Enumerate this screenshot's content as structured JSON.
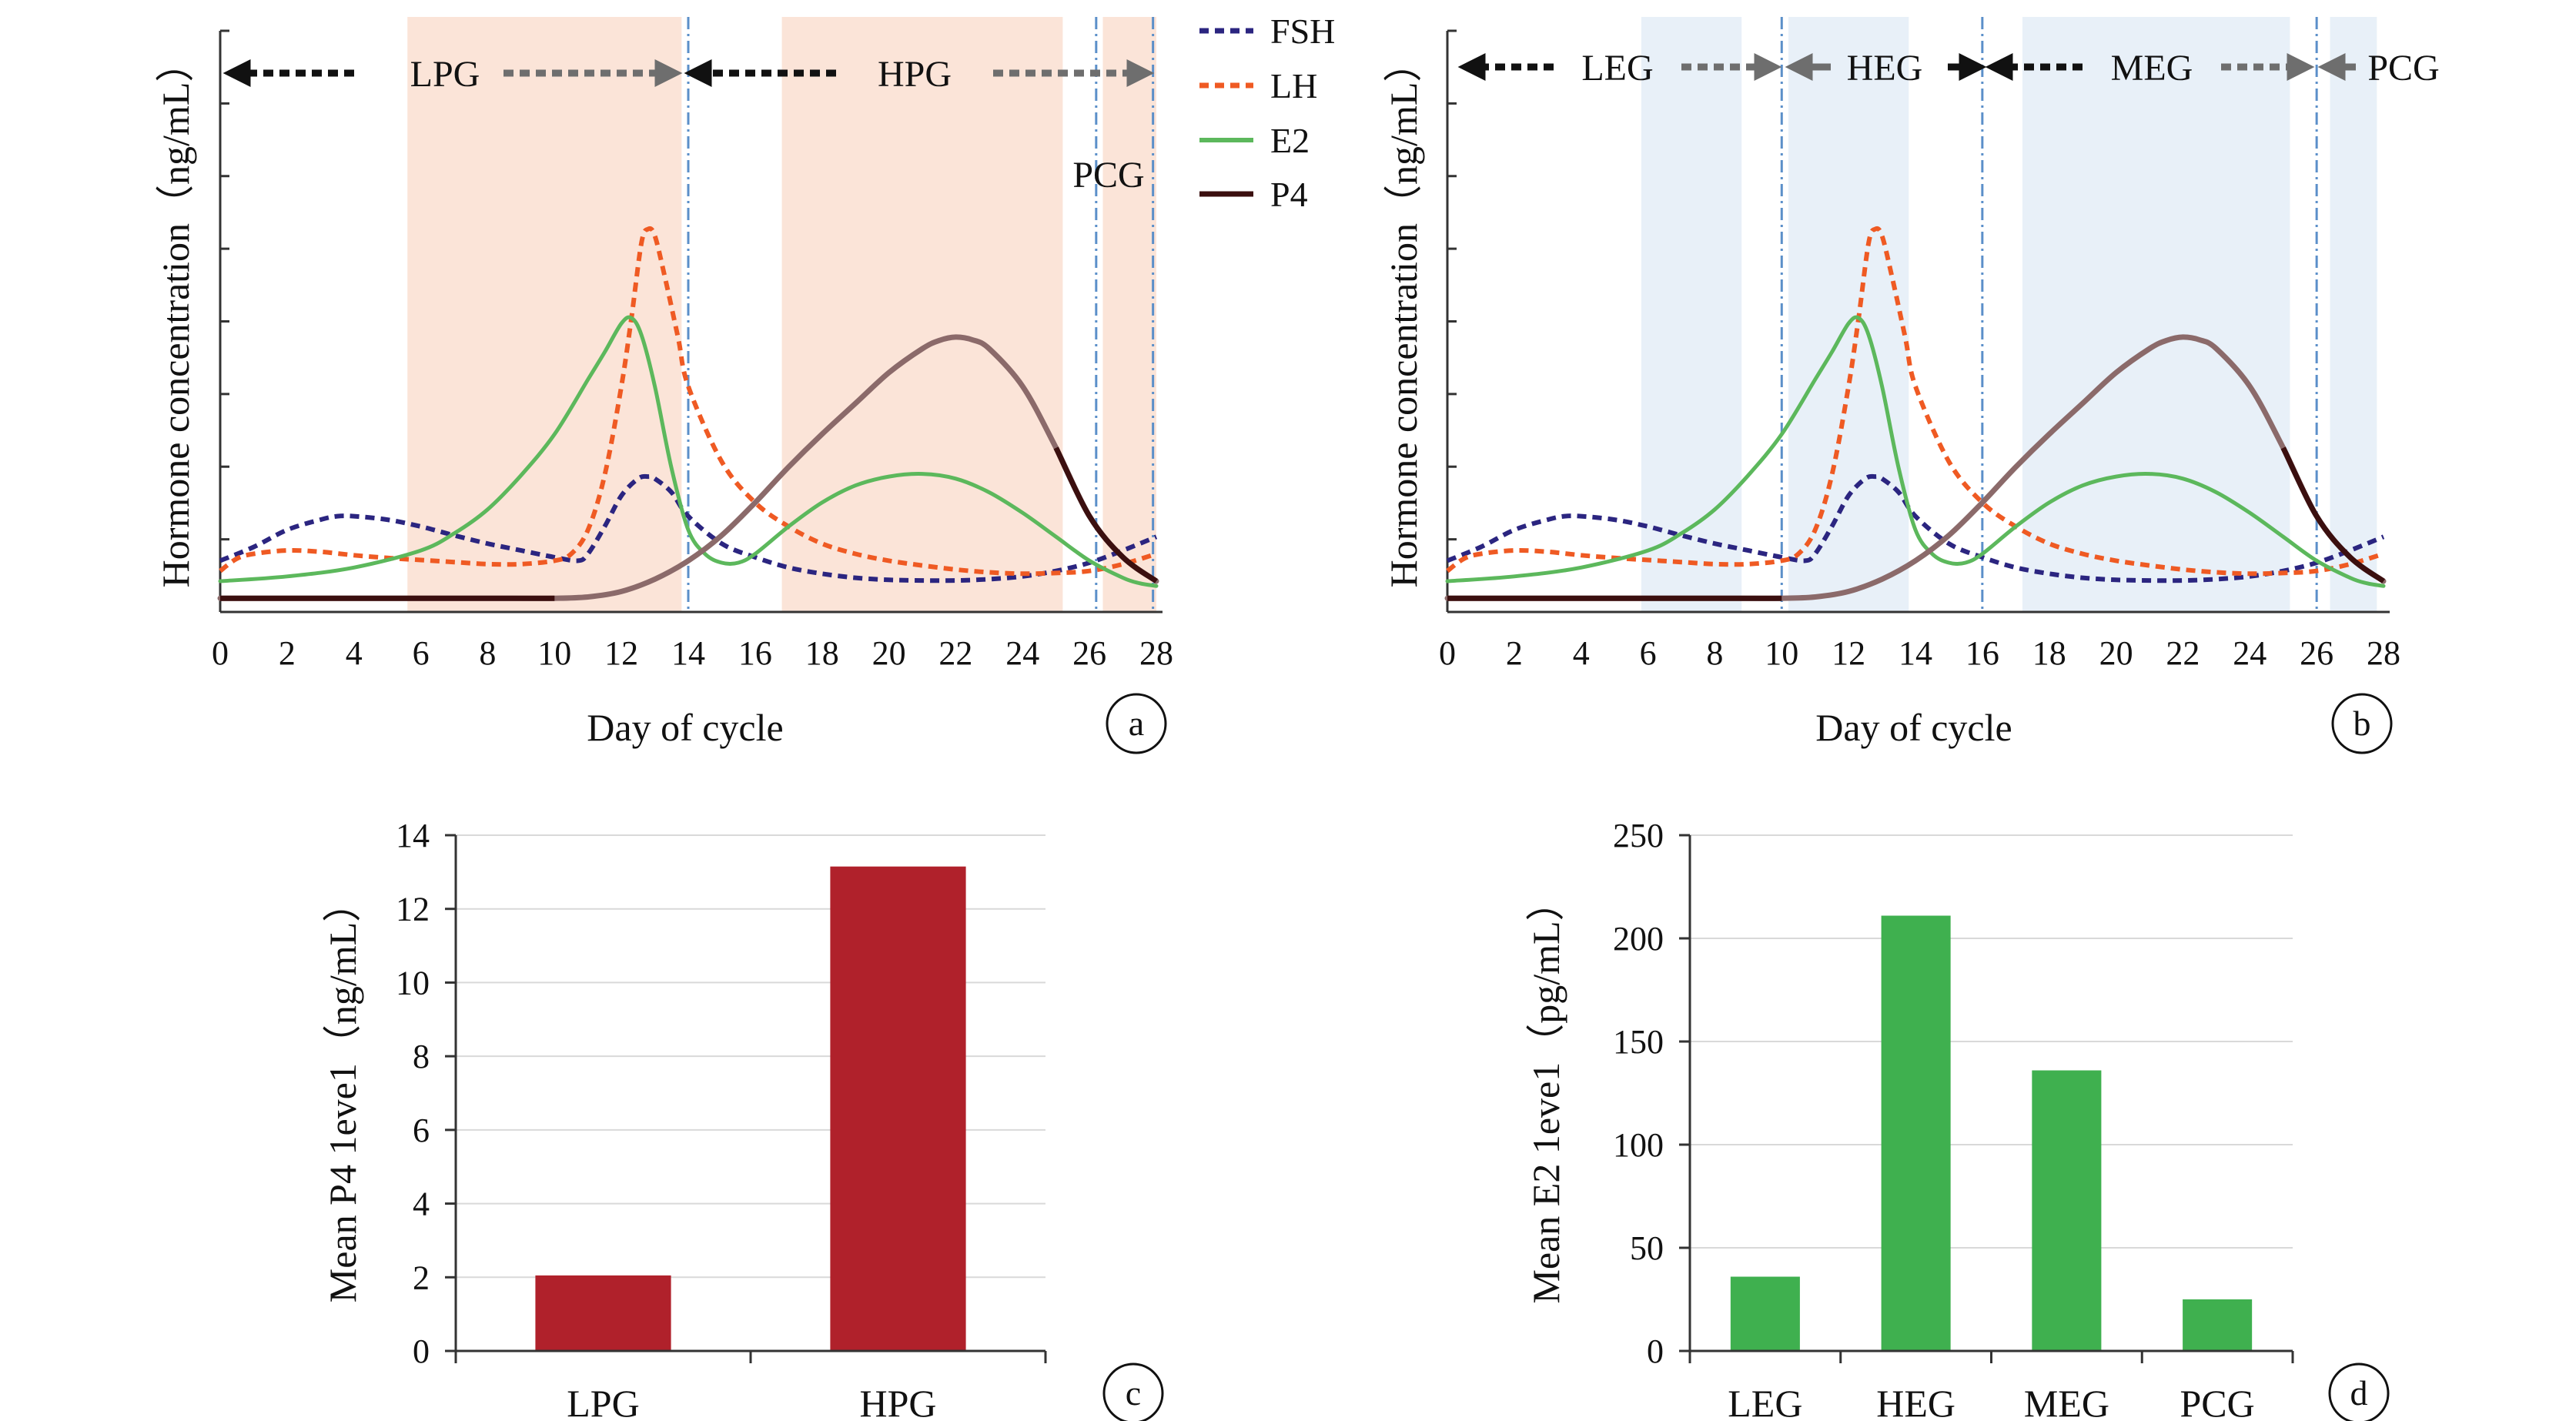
{
  "colors": {
    "FSH": "#2b2580",
    "LH": "#ef5a23",
    "E2": "#5cb85c",
    "P4": "#3b0f0f",
    "P4_light": "#8b6a6a",
    "bar_P4": "#b0212b",
    "bar_E2": "#3fb04f",
    "shade_a": "#fbe4d8",
    "shade_b": "#e8f0f8",
    "divider": "#5b8fc9",
    "arrow_black": "#111111",
    "arrow_gray": "#6e6e6e",
    "grid": "#d9d9d9"
  },
  "legend": [
    {
      "name": "FSH",
      "style": "dashed",
      "color": "#2b2580"
    },
    {
      "name": "LH",
      "style": "dashed",
      "color": "#ef5a23"
    },
    {
      "name": "E2",
      "style": "solid",
      "color": "#5cb85c"
    },
    {
      "name": "P4",
      "style": "solid",
      "color": "#3b0f0f"
    }
  ],
  "chart_data": [
    {
      "panel": "a",
      "type": "line",
      "xlabel": "Day of cycle",
      "ylabel": "Hormone concentration（ng/mL）",
      "xlim": [
        0,
        28
      ],
      "xticks": [
        0,
        2,
        4,
        6,
        8,
        10,
        12,
        14,
        16,
        18,
        20,
        22,
        24,
        26,
        28
      ],
      "y_tick_count": 8,
      "ylim": [
        0,
        8.5
      ],
      "shaded_regions": [
        [
          5.6,
          13.8
        ],
        [
          16.8,
          25.2
        ],
        [
          26.4,
          28
        ]
      ],
      "dividers": [
        14,
        26.2,
        27.9
      ],
      "phases": [
        "LPG",
        "HPG",
        "PCG"
      ],
      "series": [
        {
          "name": "FSH",
          "x": [
            0,
            1,
            2,
            3,
            3.5,
            4,
            5,
            6,
            7,
            8,
            9,
            10,
            10.7,
            11,
            11.5,
            12,
            12.5,
            12.8,
            13,
            13.5,
            14,
            15,
            16,
            17,
            18,
            19,
            20,
            21,
            22,
            23,
            24,
            25,
            26,
            27,
            28
          ],
          "y": [
            0.75,
            0.95,
            1.2,
            1.35,
            1.4,
            1.4,
            1.35,
            1.25,
            1.12,
            1.0,
            0.9,
            0.8,
            0.75,
            0.85,
            1.25,
            1.7,
            1.95,
            1.98,
            1.95,
            1.75,
            1.4,
            1.0,
            0.8,
            0.65,
            0.56,
            0.5,
            0.47,
            0.46,
            0.46,
            0.48,
            0.52,
            0.6,
            0.72,
            0.9,
            1.1
          ]
        },
        {
          "name": "LH",
          "x": [
            0,
            0.5,
            1,
            2,
            3,
            4,
            5,
            6,
            7,
            8,
            9,
            10,
            10.5,
            11,
            11.5,
            12,
            12.3,
            12.6,
            12.8,
            13,
            13.3,
            13.7,
            14,
            15,
            16,
            17,
            18,
            19,
            20,
            21,
            22,
            23,
            24,
            25,
            26,
            27,
            28
          ],
          "y": [
            0.6,
            0.78,
            0.85,
            0.9,
            0.88,
            0.83,
            0.79,
            0.76,
            0.73,
            0.7,
            0.7,
            0.75,
            0.85,
            1.2,
            2.0,
            3.3,
            4.3,
            5.4,
            5.6,
            5.5,
            4.9,
            4.0,
            3.3,
            2.2,
            1.6,
            1.25,
            1.0,
            0.85,
            0.75,
            0.68,
            0.62,
            0.58,
            0.56,
            0.57,
            0.6,
            0.7,
            0.85
          ]
        },
        {
          "name": "E2",
          "x": [
            0,
            2,
            4,
            6,
            7,
            8,
            9,
            10,
            11,
            11.5,
            12,
            12.3,
            12.6,
            13,
            13.5,
            14,
            14.5,
            15,
            15.5,
            16,
            17,
            18,
            19,
            20,
            21,
            22,
            23,
            24,
            25,
            26,
            27,
            27.5,
            28
          ],
          "y": [
            0.45,
            0.52,
            0.65,
            0.9,
            1.15,
            1.5,
            2.0,
            2.6,
            3.4,
            3.8,
            4.22,
            4.3,
            4.05,
            3.3,
            2.1,
            1.2,
            0.85,
            0.72,
            0.72,
            0.85,
            1.25,
            1.6,
            1.85,
            1.98,
            2.02,
            1.95,
            1.75,
            1.45,
            1.1,
            0.75,
            0.5,
            0.42,
            0.38
          ]
        },
        {
          "name": "P4",
          "x": [
            0,
            2,
            4,
            6,
            8,
            10,
            11,
            12,
            13,
            14,
            15,
            16,
            17,
            18,
            19,
            20,
            21,
            21.5,
            22,
            22.5,
            23,
            24,
            25,
            26,
            27,
            28
          ],
          "y": [
            0.2,
            0.2,
            0.2,
            0.2,
            0.2,
            0.2,
            0.22,
            0.3,
            0.48,
            0.75,
            1.12,
            1.6,
            2.12,
            2.6,
            3.05,
            3.5,
            3.85,
            3.97,
            4.02,
            3.98,
            3.85,
            3.3,
            2.4,
            1.4,
            0.8,
            0.45
          ]
        }
      ]
    },
    {
      "panel": "b",
      "type": "line",
      "xlabel": "Day of cycle",
      "ylabel": "Hormone concentration（ng/mL）",
      "xlim": [
        0,
        28
      ],
      "xticks": [
        0,
        2,
        4,
        6,
        8,
        10,
        12,
        14,
        16,
        18,
        20,
        22,
        24,
        26,
        28
      ],
      "y_tick_count": 8,
      "ylim": [
        0,
        8.5
      ],
      "shaded_regions": [
        [
          5.8,
          8.8
        ],
        [
          10.2,
          13.8
        ],
        [
          17.2,
          25.2
        ],
        [
          26.4,
          27.8
        ]
      ],
      "dividers": [
        10,
        16,
        26
      ],
      "phases": [
        "LEG",
        "HEG",
        "MEG",
        "PCG"
      ],
      "series": [
        {
          "name": "FSH",
          "x": [
            0,
            1,
            2,
            3,
            3.5,
            4,
            5,
            6,
            7,
            8,
            9,
            10,
            10.7,
            11,
            11.5,
            12,
            12.5,
            12.8,
            13,
            13.5,
            14,
            15,
            16,
            17,
            18,
            19,
            20,
            21,
            22,
            23,
            24,
            25,
            26,
            27,
            28
          ],
          "y": [
            0.75,
            0.95,
            1.2,
            1.35,
            1.4,
            1.4,
            1.35,
            1.25,
            1.12,
            1.0,
            0.9,
            0.8,
            0.75,
            0.85,
            1.25,
            1.7,
            1.95,
            1.98,
            1.95,
            1.75,
            1.4,
            1.0,
            0.8,
            0.65,
            0.56,
            0.5,
            0.47,
            0.46,
            0.46,
            0.48,
            0.52,
            0.6,
            0.72,
            0.9,
            1.1
          ]
        },
        {
          "name": "LH",
          "x": [
            0,
            0.5,
            1,
            2,
            3,
            4,
            5,
            6,
            7,
            8,
            9,
            10,
            10.5,
            11,
            11.5,
            12,
            12.3,
            12.6,
            12.8,
            13,
            13.3,
            13.7,
            14,
            15,
            16,
            17,
            18,
            19,
            20,
            21,
            22,
            23,
            24,
            25,
            26,
            27,
            28
          ],
          "y": [
            0.6,
            0.78,
            0.85,
            0.9,
            0.88,
            0.83,
            0.79,
            0.76,
            0.73,
            0.7,
            0.7,
            0.75,
            0.85,
            1.2,
            2.0,
            3.3,
            4.3,
            5.4,
            5.6,
            5.5,
            4.9,
            4.0,
            3.3,
            2.2,
            1.6,
            1.25,
            1.0,
            0.85,
            0.75,
            0.68,
            0.62,
            0.58,
            0.56,
            0.57,
            0.6,
            0.7,
            0.85
          ]
        },
        {
          "name": "E2",
          "x": [
            0,
            2,
            4,
            6,
            7,
            8,
            9,
            10,
            11,
            11.5,
            12,
            12.3,
            12.6,
            13,
            13.5,
            14,
            14.5,
            15,
            15.5,
            16,
            17,
            18,
            19,
            20,
            21,
            22,
            23,
            24,
            25,
            26,
            27,
            27.5,
            28
          ],
          "y": [
            0.45,
            0.52,
            0.65,
            0.9,
            1.15,
            1.5,
            2.0,
            2.6,
            3.4,
            3.8,
            4.22,
            4.3,
            4.05,
            3.3,
            2.1,
            1.2,
            0.85,
            0.72,
            0.72,
            0.85,
            1.25,
            1.6,
            1.85,
            1.98,
            2.02,
            1.95,
            1.75,
            1.45,
            1.1,
            0.75,
            0.5,
            0.42,
            0.38
          ]
        },
        {
          "name": "P4",
          "x": [
            0,
            2,
            4,
            6,
            8,
            10,
            11,
            12,
            13,
            14,
            15,
            16,
            17,
            18,
            19,
            20,
            21,
            21.5,
            22,
            22.5,
            23,
            24,
            25,
            26,
            27,
            28
          ],
          "y": [
            0.2,
            0.2,
            0.2,
            0.2,
            0.2,
            0.2,
            0.22,
            0.3,
            0.48,
            0.75,
            1.12,
            1.6,
            2.12,
            2.6,
            3.05,
            3.5,
            3.85,
            3.97,
            4.02,
            3.98,
            3.85,
            3.3,
            2.4,
            1.4,
            0.8,
            0.45
          ]
        }
      ]
    },
    {
      "panel": "c",
      "type": "bar",
      "ylabel": "Mean P4 1eve1（ng/mL）",
      "categories": [
        "LPG",
        "HPG"
      ],
      "values": [
        2.05,
        13.15
      ],
      "ylim": [
        0,
        14
      ],
      "yticks": [
        0,
        2,
        4,
        6,
        8,
        10,
        12,
        14
      ],
      "grid": true
    },
    {
      "panel": "d",
      "type": "bar",
      "ylabel": "Mean E2 1eve1（pg/mL）",
      "categories": [
        "LEG",
        "HEG",
        "MEG",
        "PCG"
      ],
      "values": [
        36,
        211,
        136,
        25
      ],
      "ylim": [
        0,
        250
      ],
      "yticks": [
        0,
        50,
        100,
        150,
        200,
        250
      ],
      "grid": true
    }
  ]
}
